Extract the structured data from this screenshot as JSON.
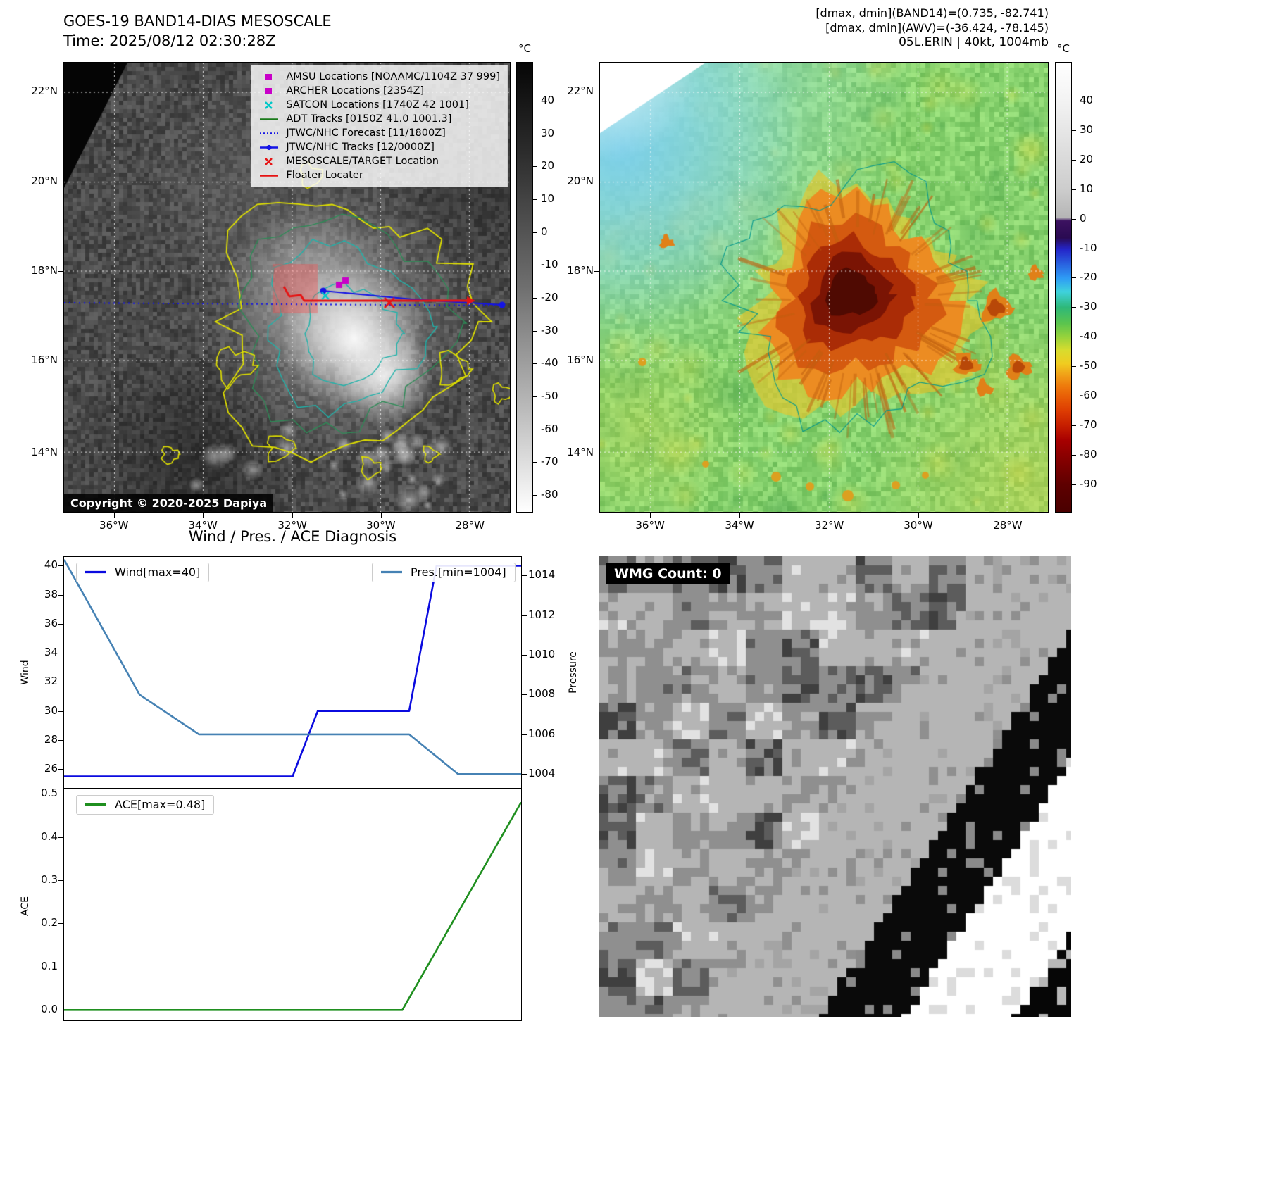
{
  "map1": {
    "title": "GOES-19 BAND14-DIAS MESOSCALE",
    "subtitle": "Time: 2025/08/12 02:30:28Z",
    "copyright": "Copyright © 2020-2025 Dapiya",
    "lat_ticks": [
      "22°N",
      "20°N",
      "18°N",
      "16°N",
      "14°N"
    ],
    "lon_ticks": [
      "36°W",
      "34°W",
      "32°W",
      "30°W",
      "28°W"
    ],
    "legend_items": [
      {
        "marker": "square",
        "color": "#c800c8",
        "label": "AMSU Locations [NOAAMC/1104Z 37 999]"
      },
      {
        "marker": "square",
        "color": "#c800c8",
        "label": "ARCHER Locations [2354Z]"
      },
      {
        "marker": "x",
        "color": "#00c8c8",
        "label": "SATCON Locations [1740Z 42 1001]"
      },
      {
        "marker": "line",
        "color": "#1a7a1a",
        "label": "ADT Tracks [0150Z 41.0 1001.3]"
      },
      {
        "marker": "dotted-line",
        "color": "#1414e6",
        "label": "JTWC/NHC Forecast [11/1800Z]"
      },
      {
        "marker": "line-dot",
        "color": "#1414e6",
        "label": "JTWC/NHC Tracks [12/0000Z]"
      },
      {
        "marker": "x",
        "color": "#e61414",
        "label": "MESOSCALE/TARGET Location"
      },
      {
        "marker": "line",
        "color": "#e61414",
        "label": "Floater Locater"
      }
    ],
    "colorbar": {
      "unit": "°C",
      "ticks": [
        "40",
        "30",
        "20",
        "10",
        "0",
        "-10",
        "-20",
        "-30",
        "-40",
        "-50",
        "-60",
        "-70",
        "-80"
      ]
    }
  },
  "map2": {
    "header_lines": [
      "[dmax, dmin](BAND14)=(0.735, -82.741)",
      "[dmax, dmin](AWV)=(-36.424, -78.145)",
      "05L.ERIN | 40kt, 1004mb"
    ],
    "lat_ticks": [
      "22°N",
      "20°N",
      "18°N",
      "16°N",
      "14°N"
    ],
    "lon_ticks": [
      "36°W",
      "34°W",
      "32°W",
      "30°W",
      "28°W"
    ],
    "colorbar": {
      "unit": "°C",
      "ticks": [
        "40",
        "30",
        "20",
        "10",
        "0",
        "-10",
        "-20",
        "-30",
        "-40",
        "-50",
        "-60",
        "-70",
        "-80",
        "-90"
      ]
    }
  },
  "wmg": {
    "label": "WMG Count: 0"
  },
  "chart_data": [
    {
      "type": "line",
      "title": "Wind / Pres. / ACE Diagnosis",
      "x_note": "x axis normalized 0-1, no tick labels shown",
      "left_axis": {
        "label": "Wind",
        "ticks": [
          "26",
          "28",
          "30",
          "32",
          "34",
          "36",
          "38",
          "40"
        ],
        "range": [
          24.7,
          40.6
        ]
      },
      "right_axis": {
        "label": "Pressure",
        "ticks": [
          "1004",
          "1006",
          "1008",
          "1010",
          "1012",
          "1014"
        ],
        "range": [
          1003.3,
          1014.93
        ]
      },
      "series": [
        {
          "name": "Wind[max=40]",
          "color": "#0b0bdf",
          "axis": "left",
          "points": [
            [
              0,
              25.5
            ],
            [
              0.5,
              25.5
            ],
            [
              0.555,
              30
            ],
            [
              0.755,
              30
            ],
            [
              0.815,
              40
            ],
            [
              1,
              40
            ]
          ]
        },
        {
          "name": "Pres.[min=1004]",
          "color": "#4682b4",
          "axis": "right",
          "points": [
            [
              0,
              1014.8
            ],
            [
              0.165,
              1008
            ],
            [
              0.295,
              1006
            ],
            [
              0.755,
              1006
            ],
            [
              0.862,
              1004
            ],
            [
              1,
              1004
            ]
          ]
        }
      ],
      "legend_position": [
        "top-left",
        "top-right"
      ]
    },
    {
      "type": "line",
      "left_axis": {
        "label": "ACE",
        "ticks": [
          "0.0",
          "0.1",
          "0.2",
          "0.3",
          "0.4",
          "0.5"
        ],
        "range": [
          -0.024,
          0.51
        ]
      },
      "series": [
        {
          "name": "ACE[max=0.48]",
          "color": "#1f8f1f",
          "axis": "left",
          "points": [
            [
              0,
              0.0
            ],
            [
              0.74,
              0.0
            ],
            [
              1,
              0.48
            ]
          ]
        }
      ],
      "legend_position": [
        "top-left"
      ]
    }
  ]
}
